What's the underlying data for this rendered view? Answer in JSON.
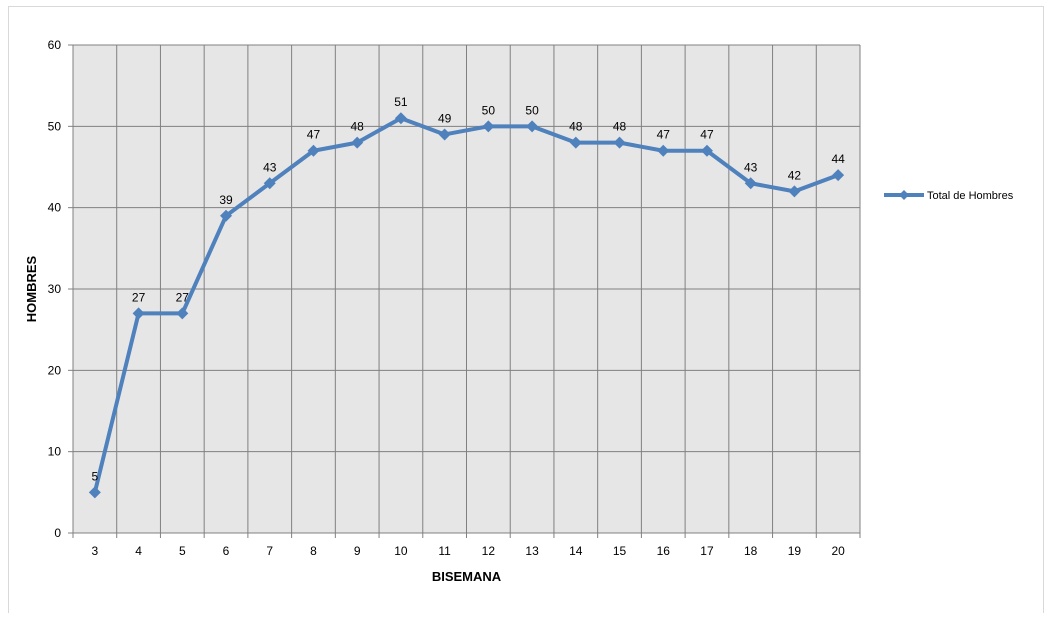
{
  "chart_data": {
    "type": "line",
    "title": "",
    "xlabel": "BISEMANA",
    "ylabel": "HOMBRES",
    "categories": [
      "3",
      "4",
      "5",
      "6",
      "7",
      "8",
      "9",
      "10",
      "11",
      "12",
      "13",
      "14",
      "15",
      "16",
      "17",
      "18",
      "19",
      "20"
    ],
    "series": [
      {
        "name": "Total de Hombres",
        "values": [
          5,
          27,
          27,
          39,
          43,
          47,
          48,
          51,
          49,
          50,
          50,
          48,
          48,
          47,
          47,
          43,
          42,
          44
        ],
        "color": "#4f81bd"
      }
    ],
    "ylim": [
      0,
      60
    ],
    "yticks": [
      0,
      10,
      20,
      30,
      40,
      50,
      60
    ],
    "grid": true,
    "legend_position": "right",
    "data_labels": true,
    "plot_background": "#e6e6e6",
    "gridline_color": "#808080"
  }
}
